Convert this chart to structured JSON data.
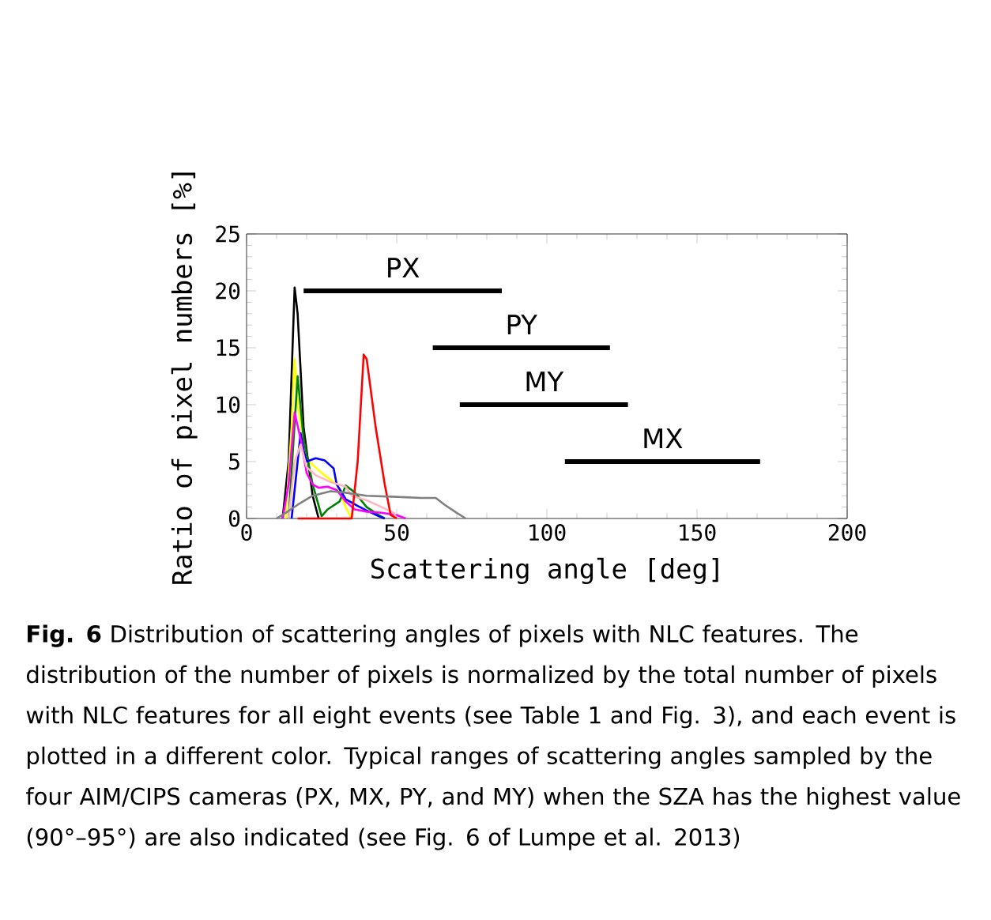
{
  "chart_data": {
    "type": "line",
    "xlabel": "Scattering angle [deg]",
    "ylabel": "Ratio of pixel numbers [%]",
    "xlim": [
      0,
      200
    ],
    "ylim": [
      0,
      25
    ],
    "xticks": [
      0,
      50,
      100,
      150,
      200
    ],
    "yticks": [
      0,
      5,
      10,
      15,
      20,
      25
    ],
    "marker": "none",
    "line_style": "solid",
    "series": [
      {
        "color": "#000000",
        "x": [
          12,
          14,
          16,
          17,
          19,
          22,
          24
        ],
        "values": [
          0,
          5,
          20.3,
          18,
          8,
          2,
          0
        ]
      },
      {
        "color": "#ffff00",
        "x": [
          13,
          15,
          16,
          17,
          20,
          25,
          30,
          33,
          35
        ],
        "values": [
          0,
          8,
          14,
          10,
          5.2,
          4,
          3,
          1,
          0
        ]
      },
      {
        "color": "#008000",
        "x": [
          14,
          17,
          19,
          22,
          25,
          27,
          31,
          33,
          36,
          40,
          44,
          46
        ],
        "values": [
          0,
          12.5,
          7,
          3,
          0.2,
          0.8,
          1.5,
          2.9,
          2.3,
          1,
          0.3,
          0
        ]
      },
      {
        "color": "#0000ff",
        "x": [
          15,
          18,
          19,
          20,
          23,
          26,
          29,
          30,
          33,
          37,
          40,
          44,
          46
        ],
        "values": [
          0,
          7.5,
          6,
          5,
          5.3,
          5.1,
          4.4,
          3,
          1.7,
          1.1,
          0.7,
          0.2,
          0
        ]
      },
      {
        "color": "#ff00ff",
        "x": [
          12,
          14,
          16,
          18,
          20,
          22,
          24,
          27,
          30,
          33,
          36,
          40,
          45,
          50,
          53
        ],
        "values": [
          0,
          3,
          9.3,
          7,
          4,
          3,
          2.7,
          2.8,
          2.5,
          1.5,
          0.8,
          0.6,
          0.5,
          0.3,
          0
        ]
      },
      {
        "color": "#ffb6c1",
        "x": [
          14,
          16,
          18,
          20,
          23,
          28,
          33,
          35,
          40,
          45,
          49,
          50
        ],
        "values": [
          0,
          5,
          6.5,
          4.5,
          3.8,
          3.2,
          2.8,
          2,
          1.6,
          1,
          0.5,
          0
        ]
      },
      {
        "color": "#ff0000",
        "x": [
          17,
          35,
          37,
          39,
          40,
          43,
          46,
          48,
          50
        ],
        "values": [
          0,
          0,
          5,
          14.4,
          14,
          8,
          3,
          0.3,
          0
        ]
      },
      {
        "color": "#808080",
        "x": [
          10,
          13,
          17,
          22,
          28,
          32,
          40,
          50,
          58,
          63,
          66,
          70,
          73
        ],
        "values": [
          0,
          0.5,
          1.2,
          2,
          2.4,
          2.3,
          2,
          1.9,
          1.8,
          1.8,
          1.2,
          0.5,
          0
        ]
      },
      {
        "name": "PX",
        "color": "#000000",
        "x": [
          19,
          85
        ],
        "values": [
          20,
          20
        ]
      },
      {
        "name": "PY",
        "color": "#000000",
        "x": [
          62,
          121
        ],
        "values": [
          15,
          15
        ]
      },
      {
        "name": "MY",
        "color": "#000000",
        "x": [
          71,
          127
        ],
        "values": [
          10,
          10
        ]
      },
      {
        "name": "MX",
        "color": "#000000",
        "x": [
          106,
          171
        ],
        "values": [
          5,
          5
        ]
      }
    ],
    "annotations": [
      "**Fig. 6** Distribution of scattering angles of pixels with NLC features. The distribution of the number of pixels is normalized by the total number of pixels with NLC features for all eight events (see Table 1 and Fig. 3), and each event is plotted in a different color. Typical ranges of scattering angles sampled by the four AIM/CIPS cameras (PX, MX, PY, and MY) when the SZA has the highest value (90°–95°) are also indicated (see Fig. 6 of Lumpe et al. 2013)"
    ]
  }
}
